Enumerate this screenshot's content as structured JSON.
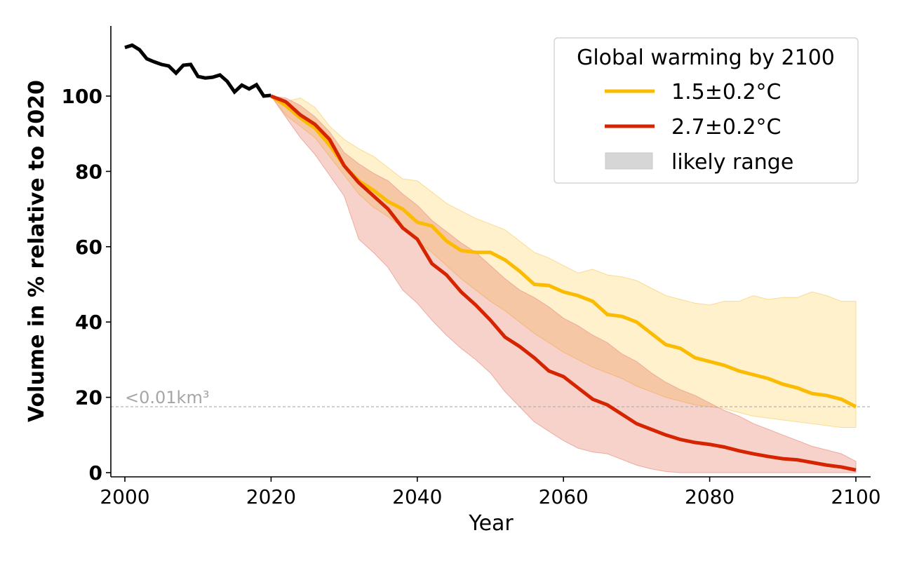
{
  "chart_data": {
    "type": "line",
    "title": "",
    "xlabel": "Year",
    "ylabel": "Volume in % relative to 2020",
    "xlim": [
      1998,
      2102
    ],
    "ylim": [
      -1,
      119
    ],
    "xticks": [
      2000,
      2020,
      2040,
      2060,
      2080,
      2100
    ],
    "yticks": [
      0,
      20,
      40,
      60,
      80,
      100
    ],
    "grid": false,
    "legend": {
      "title": "Global warming by 2100",
      "placement": "top-right",
      "entries": [
        {
          "label": "1.5±0.2°C",
          "kind": "line",
          "color": "#fbbb00"
        },
        {
          "label": "2.7±0.2°C",
          "kind": "line",
          "color": "#d62400"
        },
        {
          "label": "likely range",
          "kind": "patch",
          "color": "#d6d6d6"
        }
      ]
    },
    "annotation": {
      "text": "<0.01km³",
      "reference_line_value": 17.5,
      "color": "#a6a6a6"
    },
    "series": [
      {
        "name": "historical",
        "color": "#000000",
        "x": [
          2000,
          2001,
          2002,
          2003,
          2004,
          2005,
          2006,
          2007,
          2008,
          2009,
          2010,
          2011,
          2012,
          2013,
          2014,
          2015,
          2016,
          2017,
          2018,
          2019,
          2020
        ],
        "values": [
          112.9,
          113.5,
          112.3,
          109.9,
          109.1,
          108.4,
          108.0,
          106.1,
          108.2,
          108.4,
          105.2,
          104.8,
          105.0,
          105.6,
          103.9,
          101.1,
          102.9,
          101.9,
          103.0,
          100.0,
          100.2
        ]
      },
      {
        "name": "1.5±0.2°C",
        "color": "#fbbb00",
        "band_color": "#fff0c8",
        "x": [
          2020,
          2022,
          2024,
          2026,
          2028,
          2030,
          2032,
          2034,
          2036,
          2038,
          2040,
          2042,
          2044,
          2046,
          2048,
          2050,
          2052,
          2054,
          2056,
          2058,
          2060,
          2062,
          2064,
          2066,
          2068,
          2070,
          2072,
          2074,
          2076,
          2078,
          2080,
          2082,
          2084,
          2086,
          2088,
          2090,
          2092,
          2094,
          2096,
          2098,
          2100
        ],
        "values": [
          100,
          97.5,
          94.2,
          91.5,
          87.0,
          81.5,
          77.5,
          75.0,
          72.0,
          70.0,
          66.5,
          65.5,
          61.5,
          59.0,
          58.5,
          58.5,
          56.5,
          53.5,
          50.0,
          49.7,
          48.0,
          47.0,
          45.5,
          42.0,
          41.5,
          40.0,
          37.0,
          34.0,
          33.0,
          30.5,
          29.5,
          28.5,
          27.0,
          26.0,
          25.0,
          23.5,
          22.5,
          21.0,
          20.5,
          19.5,
          17.5
        ],
        "lower": [
          100,
          95.0,
          92.0,
          89.0,
          84.0,
          79.0,
          74.0,
          70.5,
          68.0,
          65.0,
          61.5,
          58.5,
          55.0,
          51.5,
          48.5,
          45.5,
          43.0,
          40.0,
          37.0,
          34.5,
          32.0,
          30.0,
          28.0,
          26.5,
          25.0,
          23.0,
          21.5,
          20.0,
          19.0,
          18.0,
          17.5,
          17.0,
          16.0,
          15.0,
          14.5,
          14.0,
          13.5,
          13.0,
          12.5,
          12.0,
          12.0
        ],
        "upper": [
          100,
          98.5,
          99.5,
          97.0,
          92.0,
          88.5,
          86.0,
          84.0,
          81.0,
          78.0,
          77.5,
          74.5,
          71.5,
          69.5,
          67.5,
          66.0,
          64.5,
          61.5,
          58.5,
          57.0,
          55.0,
          53.0,
          54.0,
          52.5,
          52.0,
          51.0,
          49.0,
          47.0,
          46.0,
          45.0,
          44.5,
          45.5,
          45.5,
          47.0,
          46.0,
          46.5,
          46.5,
          48.0,
          47.0,
          45.5,
          45.5
        ]
      },
      {
        "name": "2.7±0.2°C",
        "color": "#d62400",
        "band_color": "#f6d1cd",
        "x": [
          2020,
          2022,
          2024,
          2026,
          2028,
          2030,
          2032,
          2034,
          2036,
          2038,
          2040,
          2042,
          2044,
          2046,
          2048,
          2050,
          2052,
          2054,
          2056,
          2058,
          2060,
          2062,
          2064,
          2066,
          2068,
          2070,
          2072,
          2074,
          2076,
          2078,
          2080,
          2082,
          2084,
          2086,
          2088,
          2090,
          2092,
          2094,
          2096,
          2098,
          2100
        ],
        "values": [
          100,
          98.5,
          95.0,
          92.5,
          88.5,
          81.5,
          77.0,
          73.5,
          70.0,
          65.0,
          62.0,
          55.5,
          52.5,
          48.0,
          44.5,
          40.5,
          36.0,
          33.5,
          30.5,
          27.0,
          25.5,
          22.5,
          19.5,
          18.0,
          15.5,
          13.0,
          11.5,
          10.0,
          8.8,
          8.0,
          7.5,
          6.8,
          5.8,
          5.0,
          4.3,
          3.7,
          3.4,
          2.7,
          2.0,
          1.5,
          0.7
        ],
        "lower": [
          100,
          94.5,
          89.0,
          84.5,
          79.0,
          73.5,
          62.0,
          58.5,
          54.5,
          48.5,
          45.0,
          40.5,
          36.5,
          33.0,
          30.0,
          26.5,
          21.5,
          17.5,
          13.5,
          11.0,
          8.5,
          6.5,
          5.5,
          5.0,
          3.5,
          2.0,
          1.0,
          0.3,
          0.0,
          0.0,
          0.0,
          0.0,
          0.0,
          0.0,
          0.0,
          0.0,
          0.0,
          0.0,
          0.0,
          0.0,
          0.0
        ],
        "upper": [
          100,
          99.5,
          97.5,
          94.5,
          90.5,
          85.0,
          82.0,
          79.5,
          77.5,
          74.0,
          71.0,
          67.0,
          64.0,
          61.0,
          58.5,
          55.0,
          51.5,
          48.5,
          46.5,
          44.0,
          41.0,
          39.0,
          36.5,
          34.5,
          31.5,
          29.5,
          26.5,
          24.0,
          22.0,
          20.5,
          18.5,
          16.5,
          15.0,
          13.0,
          11.5,
          10.0,
          8.5,
          7.0,
          6.0,
          5.0,
          3.0
        ]
      }
    ]
  }
}
